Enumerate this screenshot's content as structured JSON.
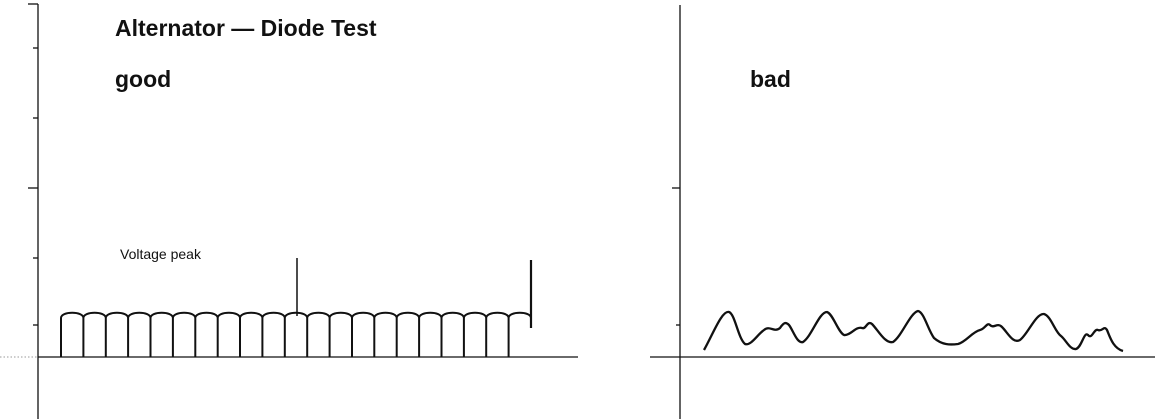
{
  "title": "Alternator — Diode Test",
  "panels": {
    "good": {
      "label": "good",
      "annotation": "Voltage peak",
      "ripple_count": 21
    },
    "bad": {
      "label": "bad"
    }
  },
  "colors": {
    "ink": "#111111",
    "dotted": "#999999",
    "background": "#ffffff"
  }
}
